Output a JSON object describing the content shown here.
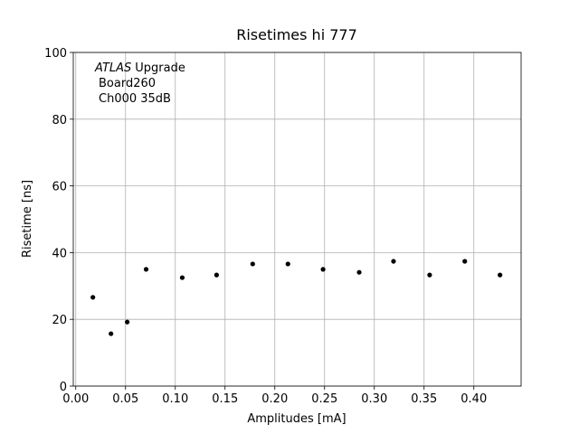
{
  "chart_data": {
    "type": "scatter",
    "title": "Risetimes hi 777",
    "x_label": "Amplitudes [mA]",
    "y_label": "Risetime [ns]",
    "annotation_emphasis": "ATLAS",
    "annotation_lines": [
      "Upgrade",
      "Board260",
      "Ch000 35dB"
    ],
    "color": "#000000",
    "grid": true,
    "x": [
      0.0172,
      0.0354,
      0.0517,
      0.0707,
      0.107,
      0.1415,
      0.1778,
      0.2132,
      0.2485,
      0.2848,
      0.3193,
      0.3556,
      0.3909,
      0.4263
    ],
    "values": [
      26.6,
      15.7,
      19.2,
      35.0,
      32.5,
      33.3,
      36.6,
      36.6,
      35.0,
      34.1,
      37.4,
      33.3,
      37.4,
      33.3
    ],
    "xlim": [
      -0.0025,
      0.4475
    ],
    "ylim": [
      0,
      100
    ],
    "xticks": [
      {
        "value": 0,
        "label": "0.00"
      },
      {
        "value": 0.05,
        "label": "0.05"
      },
      {
        "value": 0.1,
        "label": "0.10"
      },
      {
        "value": 0.15,
        "label": "0.15"
      },
      {
        "value": 0.2,
        "label": "0.20"
      },
      {
        "value": 0.25,
        "label": "0.25"
      },
      {
        "value": 0.3,
        "label": "0.30"
      },
      {
        "value": 0.35,
        "label": "0.35"
      },
      {
        "value": 0.4,
        "label": "0.40"
      }
    ],
    "yticks": [
      0,
      20,
      40,
      60,
      80,
      100
    ]
  }
}
